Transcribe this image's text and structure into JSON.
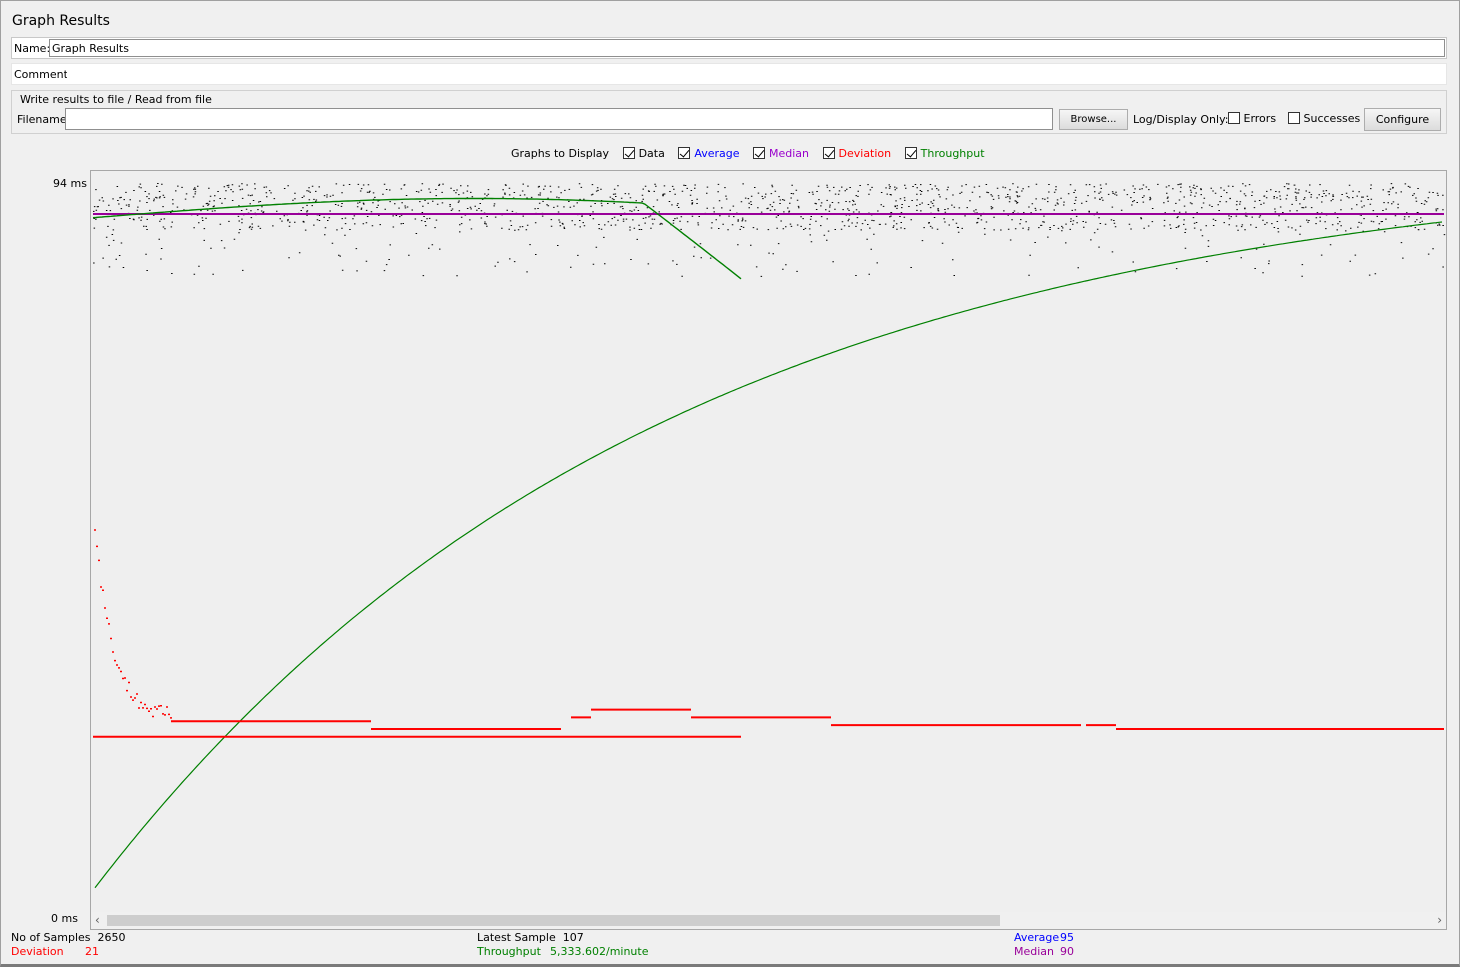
{
  "panel": {
    "title": "Graph Results"
  },
  "name": {
    "label": "Name:",
    "value": "Graph Results"
  },
  "comments": {
    "label": "Comments:",
    "value": ""
  },
  "file": {
    "legend": "Write results to file / Read from file",
    "filename_label": "Filename",
    "filename_value": "",
    "browse_label": "Browse...",
    "log_display_label": "Log/Display Only:",
    "errors_label": "Errors",
    "errors_checked": false,
    "successes_label": "Successes",
    "successes_checked": false,
    "configure_label": "Configure"
  },
  "graphs": {
    "label": "Graphs to Display",
    "items": [
      {
        "label": "Data",
        "checked": true,
        "color": "#000000"
      },
      {
        "label": "Average",
        "checked": true,
        "color": "#0000ff"
      },
      {
        "label": "Median",
        "checked": true,
        "color": "#9900cc"
      },
      {
        "label": "Deviation",
        "checked": true,
        "color": "#ff0000"
      },
      {
        "label": "Throughput",
        "checked": true,
        "color": "#008000"
      }
    ]
  },
  "chart_data": {
    "type": "scatter",
    "title": "",
    "ylabel": "ms",
    "ylim": [
      0,
      94
    ],
    "y_top_label": "94  ms",
    "y_bottom_label": "0  ms",
    "median": 90,
    "average": 95,
    "deviation": 21,
    "samples": 2650,
    "series": [
      {
        "name": "Data",
        "color": "#000000",
        "description_values": "scatter near 88-94 ms"
      },
      {
        "name": "Median",
        "color": "#990099",
        "values_ms": 90
      },
      {
        "name": "Deviation",
        "color": "#ff0000",
        "start_ms": 50,
        "settle_ms": 24
      },
      {
        "name": "Throughput",
        "color": "#008000",
        "final_per_minute": 5333.602
      }
    ]
  },
  "stats": {
    "samples_label": "No of Samples",
    "samples_value": "2650",
    "deviation_label": "Deviation",
    "deviation_value": "21",
    "latest_label": "Latest Sample",
    "latest_value": "107",
    "throughput_label": "Throughput",
    "throughput_value": "5,333.602/minute",
    "average_label": "Average",
    "average_value": "95",
    "median_label": "Median",
    "median_value": "90"
  },
  "colors": {
    "average": "#0000ff",
    "median": "#990099",
    "deviation": "#ff0000",
    "throughput": "#008000"
  }
}
